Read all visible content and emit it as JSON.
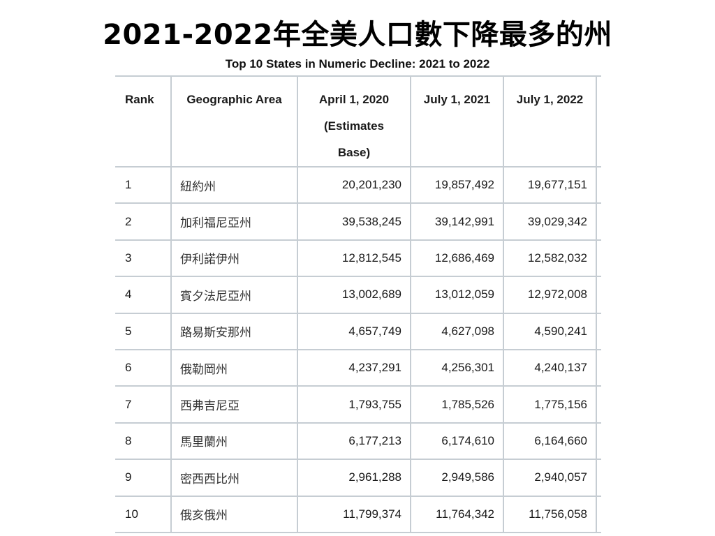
{
  "title": "2021-2022年全美人口數下降最多的州",
  "subtitle": "Top 10 States in Numeric Decline: 2021 to 2022",
  "table": {
    "headers": {
      "rank": "Rank",
      "area": "Geographic Area",
      "apr2020_line1": "April 1, 2020",
      "apr2020_line2": "(Estimates",
      "apr2020_line3": "Base)",
      "jul2021": "July 1, 2021",
      "jul2022": "July 1, 2022"
    },
    "rows": [
      {
        "rank": "1",
        "area": "紐約州",
        "apr2020": "20,201,230",
        "jul2021": "19,857,492",
        "jul2022": "19,677,151"
      },
      {
        "rank": "2",
        "area": "加利福尼亞州",
        "apr2020": "39,538,245",
        "jul2021": "39,142,991",
        "jul2022": "39,029,342"
      },
      {
        "rank": "3",
        "area": "伊利諾伊州",
        "apr2020": "12,812,545",
        "jul2021": "12,686,469",
        "jul2022": "12,582,032"
      },
      {
        "rank": "4",
        "area": "賓夕法尼亞州",
        "apr2020": "13,002,689",
        "jul2021": "13,012,059",
        "jul2022": "12,972,008"
      },
      {
        "rank": "5",
        "area": "路易斯安那州",
        "apr2020": "4,657,749",
        "jul2021": "4,627,098",
        "jul2022": "4,590,241"
      },
      {
        "rank": "6",
        "area": "俄勒岡州",
        "apr2020": "4,237,291",
        "jul2021": "4,256,301",
        "jul2022": "4,240,137"
      },
      {
        "rank": "7",
        "area": "西弗吉尼亞",
        "apr2020": "1,793,755",
        "jul2021": "1,785,526",
        "jul2022": "1,775,156"
      },
      {
        "rank": "8",
        "area": "馬里蘭州",
        "apr2020": "6,177,213",
        "jul2021": "6,174,610",
        "jul2022": "6,164,660"
      },
      {
        "rank": "9",
        "area": "密西西比州",
        "apr2020": "2,961,288",
        "jul2021": "2,949,586",
        "jul2022": "2,940,057"
      },
      {
        "rank": "10",
        "area": "俄亥俄州",
        "apr2020": "11,799,374",
        "jul2021": "11,764,342",
        "jul2022": "11,756,058"
      }
    ]
  },
  "colors": {
    "grid": "#c6cdd3",
    "text": "#1a1a1a"
  }
}
